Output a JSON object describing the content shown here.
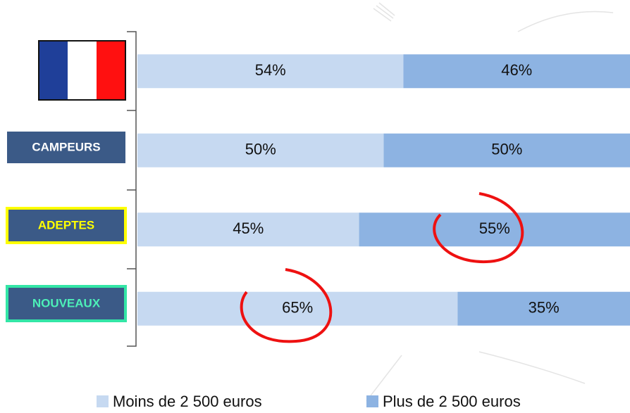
{
  "chart_data": {
    "type": "stacked-bar-horizontal",
    "categories": [
      null,
      "CAMPEURS",
      "ADEPTES",
      "NOUVEAUX"
    ],
    "series": [
      {
        "name": "Moins de 2 500 euros",
        "color": "#c6d9f1",
        "values": [
          54,
          50,
          45,
          65
        ],
        "value_labels": [
          "54%",
          "50%",
          "45%",
          "65%"
        ]
      },
      {
        "name": "Plus de 2 500 euros",
        "color": "#8db3e2",
        "values": [
          46,
          50,
          55,
          35
        ],
        "value_labels": [
          "46%",
          "50%",
          "55%",
          "35%"
        ]
      }
    ],
    "xlim": [
      0,
      100
    ]
  }
}
